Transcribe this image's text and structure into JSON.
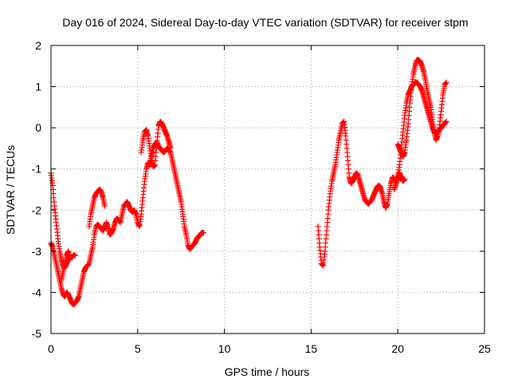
{
  "chart_data": {
    "type": "scatter",
    "title": "Day 016 of 2024, Sidereal Day-to-day VTEC variation (SDTVAR) for receiver stpm",
    "xlabel": "GPS time / hours",
    "ylabel": "SDTVAR / TECUs",
    "xlim": [
      0,
      25
    ],
    "ylim": [
      -5,
      2
    ],
    "xticks": [
      0,
      5,
      10,
      15,
      20,
      25
    ],
    "yticks": [
      -5,
      -4,
      -3,
      -2,
      -1,
      0,
      1,
      2
    ],
    "xtick_labels": [
      "0",
      "5",
      "10",
      "15",
      "20",
      "25"
    ],
    "ytick_labels": [
      "-5",
      "-4",
      "-3",
      "-2",
      "-1",
      "0",
      "1",
      "2"
    ],
    "grid": true,
    "marker": "+",
    "colors": {
      "series": "#ff0000",
      "grid": "#a0a0a0",
      "axis": "#000000"
    },
    "series": [
      {
        "name": "SDTVAR",
        "segments": [
          {
            "x": [
              0.0,
              0.1,
              0.2,
              0.3,
              0.4,
              0.5,
              0.6,
              0.7,
              0.8,
              0.9,
              1.0,
              1.1,
              1.2,
              1.3,
              1.4,
              1.5,
              1.6,
              1.7,
              1.8,
              1.9,
              2.0,
              2.1,
              2.2,
              2.3,
              2.4,
              2.5,
              2.6,
              2.7,
              2.8,
              2.9,
              3.0,
              3.1,
              3.2,
              3.3,
              3.4,
              3.5,
              3.6,
              3.7,
              3.8,
              3.9,
              4.0,
              4.1,
              4.2,
              4.3,
              4.4,
              4.5,
              4.6,
              4.7,
              4.8,
              4.9,
              5.0,
              5.1,
              5.2,
              5.3,
              5.4,
              5.5,
              5.6,
              5.7,
              5.8,
              5.9,
              6.0,
              6.1,
              6.2,
              6.3,
              6.4,
              6.5,
              6.6,
              6.7,
              6.8,
              6.9,
              7.0,
              7.1,
              7.2,
              7.3,
              7.4,
              7.5,
              7.6,
              7.7,
              7.8,
              7.9,
              8.0,
              8.1,
              8.2,
              8.3,
              8.4,
              8.5,
              8.6,
              8.7,
              8.8
            ],
            "y": [
              -2.8,
              -2.9,
              -3.1,
              -3.3,
              -3.5,
              -3.7,
              -3.9,
              -4.05,
              -4.1,
              -4.0,
              -4.05,
              -4.15,
              -4.25,
              -4.3,
              -4.25,
              -4.2,
              -4.1,
              -3.9,
              -3.7,
              -3.5,
              -3.4,
              -3.35,
              -3.3,
              -3.1,
              -2.9,
              -2.6,
              -2.4,
              -2.35,
              -2.4,
              -2.45,
              -2.5,
              -2.4,
              -2.3,
              -2.45,
              -2.6,
              -2.55,
              -2.45,
              -2.3,
              -2.2,
              -2.25,
              -2.3,
              -2.1,
              -1.9,
              -1.85,
              -1.8,
              -1.9,
              -2.0,
              -2.05,
              -2.0,
              -2.1,
              -2.3,
              -2.4,
              -2.1,
              -1.7,
              -1.3,
              -1.0,
              -0.85,
              -0.9,
              -0.7,
              -0.5,
              -0.4,
              -0.35,
              -0.45,
              -0.5,
              -0.55,
              -0.6,
              -0.55,
              -0.5,
              -0.55,
              -0.6,
              -0.8,
              -1.0,
              -1.2,
              -1.4,
              -1.6,
              -1.8,
              -2.1,
              -2.4,
              -2.6,
              -2.85,
              -2.95,
              -2.9,
              -2.85,
              -2.8,
              -2.7,
              -2.65,
              -2.6,
              -2.55,
              -2.55
            ]
          },
          {
            "x": [
              0.0,
              0.1,
              0.2,
              0.3,
              0.4,
              0.5,
              0.6,
              0.7,
              0.8,
              0.9,
              1.0,
              1.1,
              1.2,
              1.3,
              1.4
            ],
            "y": [
              -1.1,
              -1.4,
              -1.9,
              -2.3,
              -2.7,
              -3.0,
              -3.2,
              -3.35,
              -3.4,
              -3.3,
              -3.2,
              -3.15,
              -3.15,
              -3.1,
              -3.1
            ]
          },
          {
            "x": [
              0.6,
              0.7,
              0.8,
              0.9,
              1.0,
              1.1
            ],
            "y": [
              -3.7,
              -3.5,
              -3.3,
              -3.1,
              -3.0,
              -3.2
            ]
          },
          {
            "x": [
              2.2,
              2.3,
              2.4,
              2.5,
              2.6,
              2.7,
              2.8,
              2.9,
              3.0,
              3.1
            ],
            "y": [
              -2.4,
              -2.1,
              -1.9,
              -1.7,
              -1.6,
              -1.55,
              -1.5,
              -1.55,
              -1.7,
              -1.9
            ]
          },
          {
            "x": [
              5.2,
              5.3,
              5.4,
              5.5,
              5.6,
              5.7,
              5.8,
              5.9,
              6.0,
              6.1,
              6.2,
              6.3,
              6.4,
              6.5,
              6.6,
              6.7,
              6.8,
              6.9
            ],
            "y": [
              -0.6,
              -0.3,
              -0.1,
              -0.05,
              -0.2,
              -0.5,
              -0.8,
              -0.95,
              -0.9,
              -0.4,
              0.05,
              0.15,
              0.1,
              0.0,
              -0.1,
              -0.2,
              -0.35,
              -0.5
            ]
          },
          {
            "x": [
              15.4,
              15.5,
              15.6,
              15.7,
              15.8,
              15.9,
              16.0,
              16.1,
              16.2,
              16.3,
              16.4,
              16.5,
              16.6,
              16.7,
              16.8,
              16.9,
              17.0,
              17.1,
              17.2,
              17.3,
              17.4,
              17.5,
              17.6,
              17.7,
              17.8,
              17.9,
              18.0,
              18.1,
              18.2,
              18.3,
              18.4,
              18.5,
              18.6,
              18.7,
              18.8,
              18.9,
              19.0,
              19.1,
              19.2,
              19.3,
              19.4,
              19.5,
              19.6,
              19.7,
              19.8,
              19.9,
              20.0,
              20.1,
              20.2,
              20.3,
              20.4,
              20.5,
              20.6,
              20.7,
              20.8,
              20.9,
              21.0,
              21.1,
              21.2,
              21.3,
              21.4,
              21.5,
              21.6,
              21.7,
              21.8,
              21.9,
              22.0,
              22.1,
              22.2,
              22.3,
              22.4,
              22.5,
              22.6,
              22.7,
              22.8
            ],
            "y": [
              -2.4,
              -2.9,
              -3.3,
              -3.35,
              -3.0,
              -2.5,
              -2.0,
              -1.6,
              -1.3,
              -1.1,
              -0.9,
              -0.6,
              -0.3,
              -0.1,
              0.1,
              0.15,
              -0.2,
              -0.7,
              -1.2,
              -1.35,
              -1.3,
              -1.2,
              -1.1,
              -1.15,
              -1.3,
              -1.45,
              -1.6,
              -1.75,
              -1.8,
              -1.85,
              -1.8,
              -1.75,
              -1.65,
              -1.55,
              -1.45,
              -1.4,
              -1.45,
              -1.6,
              -1.8,
              -1.95,
              -1.85,
              -1.6,
              -1.35,
              -1.2,
              -1.25,
              -1.3,
              -1.2,
              -0.9,
              -0.5,
              -0.1,
              0.3,
              0.6,
              0.8,
              0.9,
              1.0,
              1.05,
              1.1,
              1.1,
              1.05,
              1.0,
              0.9,
              0.75,
              0.6,
              0.45,
              0.3,
              0.15,
              0.0,
              -0.1,
              -0.15,
              -0.1,
              -0.05,
              0.0,
              0.05,
              0.1,
              0.15
            ]
          },
          {
            "x": [
              20.0,
              20.1,
              20.2,
              20.3,
              20.4,
              20.5,
              20.6,
              20.7,
              20.8,
              20.9,
              21.0,
              21.1,
              21.2,
              21.3,
              21.4,
              21.5,
              21.6,
              21.7,
              21.8,
              21.9,
              22.0,
              22.1,
              22.2,
              22.3,
              22.4,
              22.5,
              22.6,
              22.7,
              22.8
            ],
            "y": [
              -0.4,
              -0.5,
              -0.6,
              -0.7,
              -0.6,
              -0.3,
              0.1,
              0.6,
              1.0,
              1.3,
              1.5,
              1.65,
              1.65,
              1.6,
              1.5,
              1.35,
              1.15,
              0.9,
              0.7,
              0.5,
              0.2,
              -0.1,
              -0.3,
              -0.2,
              0.0,
              0.4,
              0.8,
              1.05,
              1.1
            ]
          },
          {
            "x": [
              19.8,
              19.9,
              20.0,
              20.1,
              20.2,
              20.3,
              20.4
            ],
            "y": [
              -1.5,
              -1.35,
              -1.2,
              -1.1,
              -1.2,
              -1.3,
              -1.25
            ]
          }
        ]
      }
    ]
  }
}
